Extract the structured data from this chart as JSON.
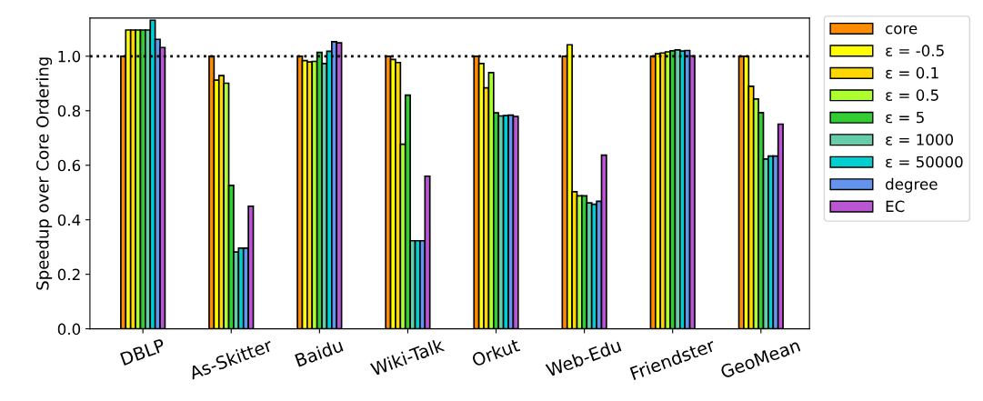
{
  "chart_data": {
    "type": "bar",
    "ylabel": "Speedup over Core Ordering",
    "categories": [
      "DBLP",
      "As-Skitter",
      "Baidu",
      "Wiki-Talk",
      "Orkut",
      "Web-Edu",
      "Friendster",
      "GeoMean"
    ],
    "ylim": [
      0,
      1.14
    ],
    "yticks": [
      {
        "value": 0,
        "label": "0.0"
      },
      0.2,
      0.4,
      0.6,
      0.8,
      {
        "value": 1,
        "label": "1.0"
      }
    ],
    "grid": false,
    "legend": "top right",
    "ref_lines": [
      {
        "axis": "y",
        "value": 1,
        "color": "#000000",
        "line_style": "dotted"
      }
    ],
    "series": [
      {
        "name": "core",
        "color": "#ff8c00",
        "values": [
          1.0,
          1.0,
          1.0,
          1.0,
          1.0,
          1.0,
          1.0,
          1.0
        ]
      },
      {
        "name": "ε = -0.5",
        "color": "#ffff00",
        "values": [
          1.096,
          0.912,
          0.984,
          0.988,
          0.973,
          1.042,
          1.009,
          1.0
        ]
      },
      {
        "name": "ε = 0.1",
        "color": "#ffd700",
        "values": [
          1.096,
          0.929,
          0.979,
          0.977,
          0.884,
          0.503,
          1.012,
          0.89
        ]
      },
      {
        "name": "ε = 0.5",
        "color": "#adff2f",
        "values": [
          1.096,
          0.901,
          0.981,
          0.677,
          0.94,
          0.488,
          1.016,
          0.843
        ]
      },
      {
        "name": "ε = 5",
        "color": "#32cd32",
        "values": [
          1.096,
          0.526,
          1.014,
          0.857,
          0.792,
          0.488,
          1.02,
          0.793
        ]
      },
      {
        "name": "ε = 1000",
        "color": "#66cdaa",
        "values": [
          1.096,
          0.282,
          0.973,
          0.323,
          0.781,
          0.462,
          1.023,
          0.623
        ]
      },
      {
        "name": "ε = 50000",
        "color": "#00ced1",
        "values": [
          1.132,
          0.296,
          1.018,
          0.323,
          0.782,
          0.457,
          1.019,
          0.634
        ]
      },
      {
        "name": "degree",
        "color": "#6495ed",
        "values": [
          1.062,
          0.296,
          1.053,
          0.323,
          0.784,
          0.468,
          1.021,
          0.634
        ]
      },
      {
        "name": "EC",
        "color": "#ba55d3",
        "values": [
          1.032,
          0.45,
          1.049,
          0.56,
          0.779,
          0.637,
          1.001,
          0.751
        ]
      }
    ]
  }
}
